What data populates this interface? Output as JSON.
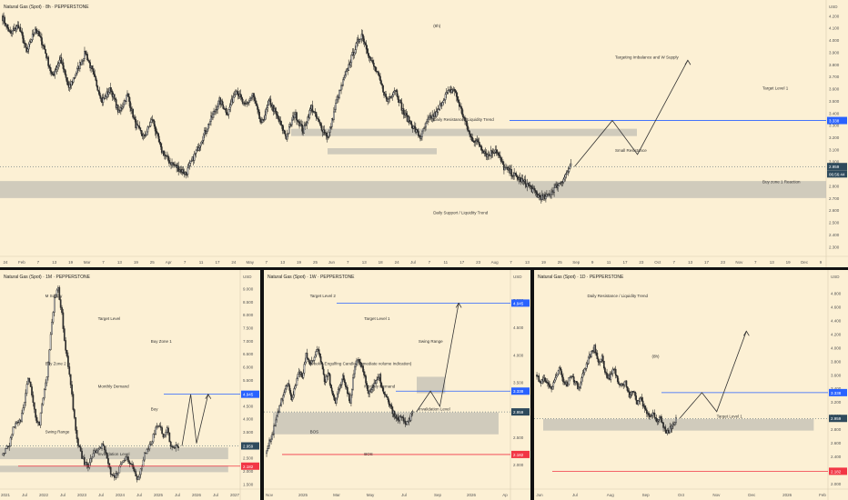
{
  "colors": {
    "background": "#fcf0d4",
    "bull": "#ffffff",
    "bear": "#2e2e2e",
    "wick": "#2e2e2e",
    "zone": "#bdbab2",
    "target_blue": "#2962ff",
    "red": "#f23645",
    "last_price": "#2e4a5c",
    "divider": "#111111"
  },
  "panels": [
    {
      "id": "main",
      "title": "Natural Gas (Spot) · 8h · PEPPERSTONE",
      "currency": "USD",
      "xlabels": [
        "24",
        "Feb",
        "7",
        "13",
        "19",
        "Mar",
        "7",
        "13",
        "19",
        "25",
        "Apr",
        "7",
        "11",
        "17",
        "24",
        "May",
        "7",
        "13",
        "19",
        "25",
        "Jun",
        "7",
        "13",
        "18",
        "24",
        "Jul",
        "7",
        "11",
        "17",
        "23",
        "Aug",
        "7",
        "13",
        "19",
        "25",
        "Sep",
        "9",
        "11",
        "17",
        "23",
        "Oct",
        "7",
        "13",
        "17",
        "23",
        "Nov",
        "7",
        "13",
        "19",
        "Dec",
        "9"
      ],
      "annotations": [
        "(8h)",
        "Targeting Imbalance and W Supply",
        "Target Level 1",
        "Daily Resistance / Liquidity Trend",
        "Small Resistance",
        "Buy zone 1 Reaction",
        "Daily Support / Liquidity Trend"
      ],
      "price_tags": [
        {
          "label": "3.338",
          "kind": "target"
        },
        {
          "label": "2.959",
          "kind": "last"
        },
        {
          "label": "06:56:44",
          "kind": "timer"
        }
      ]
    },
    {
      "id": "monthly",
      "title": "Natural Gas (Spot) · 1M · PEPPERSTONE",
      "currency": "USD",
      "xlabels": [
        "2021",
        "Jul",
        "2022",
        "Jul",
        "2023",
        "Jul",
        "2024",
        "Jul",
        "2025",
        "Jul",
        "2026",
        "Jul",
        "2027"
      ],
      "annotations": [
        "M Supply",
        "Target Level",
        "Buy Zone 1",
        "Buy Zone 2",
        "Monthly Demand",
        "Buy",
        "Swing Range",
        "Invalidation Level"
      ],
      "price_tags": [
        {
          "label": "4.945",
          "kind": "target"
        },
        {
          "label": "2.959",
          "kind": "last"
        },
        {
          "label": "2.182",
          "kind": "red"
        }
      ]
    },
    {
      "id": "weekly",
      "title": "Natural Gas (Spot) · 1W · PEPPERSTONE",
      "currency": "USD",
      "xlabels": [
        "Nov",
        "2025",
        "Mar",
        "May",
        "Jul",
        "Sep",
        "2026",
        "Ap"
      ],
      "annotations": [
        "Target Level 2",
        "Target Level 1",
        "Swing Range",
        "Weekly Engulfing Candle (Immediate volume Indication)",
        "Monthly Demand",
        "Invalidation Level",
        "BOS",
        "BOS"
      ],
      "price_tags": [
        {
          "label": "4.945",
          "kind": "target"
        },
        {
          "label": "3.338",
          "kind": "target"
        },
        {
          "label": "2.959",
          "kind": "last"
        },
        {
          "label": "2.182",
          "kind": "red"
        }
      ]
    },
    {
      "id": "daily",
      "title": "Natural Gas (Spot) · 1D · PEPPERSTONE",
      "currency": "USD",
      "xlabels": [
        "Jun",
        "Jul",
        "Aug",
        "Sep",
        "Oct",
        "Nov",
        "Dec",
        "2026",
        "Feb"
      ],
      "annotations": [
        "Daily Resistance / Liquidity Trend",
        "(8h)",
        "Target Level 1"
      ],
      "price_tags": [
        {
          "label": "3.338",
          "kind": "target"
        },
        {
          "label": "2.959",
          "kind": "last"
        },
        {
          "label": "2.182",
          "kind": "red"
        }
      ]
    }
  ],
  "chart_data": [
    {
      "type": "candlestick",
      "title": "Natural Gas (Spot) · 8h · PEPPERSTONE",
      "y_ticks": [
        2.2,
        2.3,
        2.4,
        2.5,
        2.6,
        2.7,
        2.8,
        2.9,
        3.0,
        3.1,
        3.2,
        3.3,
        3.4,
        3.5,
        3.6,
        3.7,
        3.8,
        3.9,
        4.0,
        4.1,
        4.2
      ],
      "y_range": [
        2.22,
        4.24
      ],
      "close_path": [
        4.2,
        4.05,
        4.12,
        3.9,
        4.1,
        3.95,
        3.7,
        3.85,
        3.6,
        3.75,
        3.9,
        3.7,
        3.5,
        3.6,
        3.4,
        3.55,
        3.3,
        3.2,
        3.35,
        3.1,
        3.0,
        2.95,
        2.9,
        3.05,
        3.2,
        3.35,
        3.5,
        3.4,
        3.6,
        3.45,
        3.55,
        3.3,
        3.5,
        3.35,
        3.2,
        3.4,
        3.25,
        3.45,
        3.3,
        3.2,
        3.5,
        3.7,
        3.9,
        4.05,
        3.85,
        3.7,
        3.5,
        3.6,
        3.4,
        3.3,
        3.2,
        3.35,
        3.4,
        3.55,
        3.6,
        3.4,
        3.2,
        3.15,
        3.05,
        3.1,
        2.95,
        2.9,
        2.85,
        2.8,
        2.72,
        2.7,
        2.78,
        2.85,
        2.96
      ],
      "last": 2.959,
      "target_level_1": 3.338,
      "zones": [
        [
          2.7,
          2.84
        ],
        [
          3.21,
          3.27
        ],
        [
          3.06,
          3.11
        ]
      ]
    },
    {
      "type": "candlestick",
      "title": "Natural Gas (Spot) · 1M · PEPPERSTONE",
      "y_ticks": [
        1.5,
        2.0,
        2.5,
        3.0,
        3.5,
        4.0,
        4.5,
        5.0,
        5.5,
        6.0,
        6.5,
        7.0,
        7.5,
        8.0,
        8.5,
        9.0
      ],
      "y_range": [
        1.3,
        9.3
      ],
      "close_path": [
        2.6,
        2.8,
        3.0,
        3.6,
        3.8,
        4.0,
        4.6,
        5.6,
        5.0,
        4.0,
        3.8,
        4.8,
        5.6,
        7.2,
        8.6,
        9.0,
        8.0,
        6.6,
        5.8,
        4.4,
        3.2,
        2.7,
        2.3,
        2.2,
        2.6,
        2.8,
        2.9,
        3.0,
        2.4,
        1.9,
        1.8,
        2.0,
        2.3,
        2.6,
        2.3,
        2.1,
        1.7,
        2.0,
        2.6,
        2.8,
        3.2,
        3.6,
        3.8,
        3.2,
        3.6,
        3.0,
        2.9,
        2.96
      ],
      "last": 2.959,
      "target_level": 4.945,
      "invalidation_level": 2.182,
      "zones": [
        [
          2.45,
          2.9
        ],
        [
          1.95,
          2.2
        ]
      ]
    },
    {
      "type": "candlestick",
      "title": "Natural Gas (Spot) · 1W · PEPPERSTONE",
      "y_ticks": [
        2.0,
        2.5,
        3.0,
        3.5,
        4.0,
        4.5,
        5.0
      ],
      "y_range": [
        1.55,
        5.35
      ],
      "close_path": [
        2.2,
        2.4,
        2.6,
        2.9,
        3.1,
        3.3,
        3.5,
        3.2,
        3.4,
        3.7,
        3.6,
        4.0,
        3.8,
        3.9,
        4.1,
        3.9,
        3.5,
        3.7,
        3.3,
        3.1,
        3.4,
        3.6,
        3.4,
        3.1,
        3.7,
        3.9,
        3.8,
        3.6,
        3.3,
        3.4,
        3.5,
        3.6,
        3.3,
        3.2,
        3.05,
        2.9,
        2.8,
        2.9,
        2.7,
        2.8,
        2.96
      ],
      "last": 2.959,
      "target_level_1": 3.338,
      "target_level_2": 4.945,
      "invalidation_level": 2.182,
      "zones": [
        [
          2.55,
          2.95
        ],
        [
          3.3,
          3.6
        ]
      ]
    },
    {
      "type": "candlestick",
      "title": "Natural Gas (Spot) · 1D · PEPPERSTONE",
      "y_ticks": [
        2.0,
        2.2,
        2.4,
        2.6,
        2.8,
        3.0,
        3.2,
        3.4,
        3.6,
        3.8,
        4.0,
        4.2,
        4.4,
        4.6,
        4.8
      ],
      "y_range": [
        1.92,
        4.98
      ],
      "close_path": [
        3.6,
        3.5,
        3.55,
        3.45,
        3.4,
        3.55,
        3.7,
        3.5,
        3.45,
        3.6,
        3.5,
        3.4,
        3.6,
        3.75,
        3.9,
        4.0,
        3.8,
        3.85,
        3.6,
        3.55,
        3.7,
        3.5,
        3.45,
        3.5,
        3.3,
        3.35,
        3.2,
        3.25,
        3.1,
        3.0,
        3.05,
        2.9,
        2.95,
        2.8,
        2.75,
        2.85,
        2.96
      ],
      "last": 2.959,
      "target_level_1": 3.338,
      "invalidation_level": 2.182,
      "zones": [
        [
          2.78,
          2.95
        ]
      ]
    }
  ]
}
